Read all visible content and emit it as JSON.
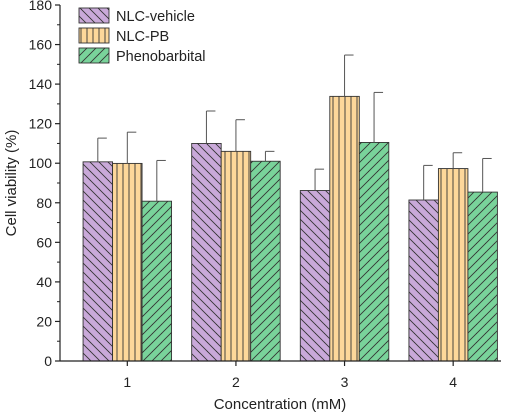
{
  "chart_data": {
    "type": "bar",
    "title": "",
    "xlabel": "Concentration (mM)",
    "ylabel": "Cell viability (%)",
    "categories": [
      "1",
      "2",
      "3",
      "4"
    ],
    "ylim": [
      0,
      180
    ],
    "yticks": [
      0,
      20,
      40,
      60,
      80,
      100,
      120,
      140,
      160,
      180
    ],
    "grid": false,
    "legend_position": "top-left",
    "series": [
      {
        "name": "NLC-vehicle",
        "color": "#c9a9d9",
        "hatch": "backslash",
        "values": [
          100.7,
          110.0,
          86.2,
          81.4
        ],
        "errors": [
          12.0,
          16.4,
          10.8,
          17.5
        ]
      },
      {
        "name": "NLC-PB",
        "color": "#fdd79a",
        "hatch": "vertical",
        "values": [
          99.9,
          106.0,
          133.8,
          97.3
        ],
        "errors": [
          15.8,
          16.0,
          20.9,
          8.0
        ]
      },
      {
        "name": "Phenobarbital",
        "color": "#79d39a",
        "hatch": "slash",
        "values": [
          80.8,
          101.0,
          110.5,
          85.4
        ],
        "errors": [
          20.6,
          5.0,
          25.3,
          17.0
        ]
      }
    ]
  }
}
